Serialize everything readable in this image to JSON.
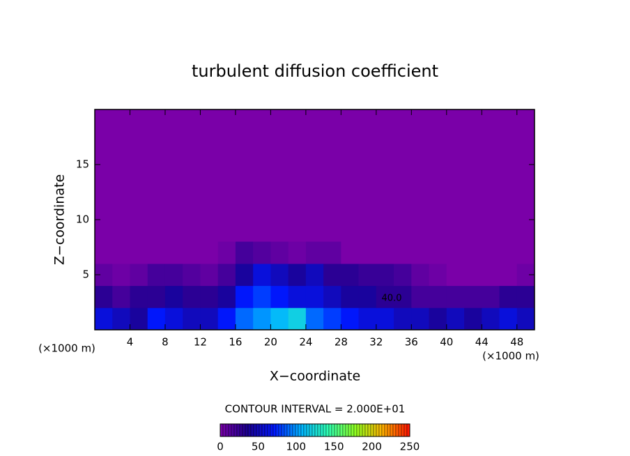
{
  "chart_data": {
    "type": "heatmap",
    "title": "turbulent diffusion coefficient",
    "x_label": "X−coordinate",
    "y_label": "Z−coordinate",
    "x_unit_left": "(×1000 m)",
    "x_unit_right": "(×1000 m)",
    "contour_interval": "CONTOUR INTERVAL = 2.000E+01",
    "annotations": [
      "40.0"
    ],
    "xlim": [
      0,
      50
    ],
    "ylim": [
      0,
      20
    ],
    "xticks": [
      4,
      8,
      12,
      16,
      20,
      24,
      28,
      32,
      36,
      40,
      44,
      48
    ],
    "yticks": [
      5,
      10,
      15
    ],
    "xbins": [
      0,
      2,
      4,
      6,
      8,
      10,
      12,
      14,
      16,
      18,
      20,
      22,
      24,
      26,
      28,
      30,
      32,
      34,
      36,
      38,
      40,
      42,
      44,
      46,
      48,
      50
    ],
    "ybins": [
      0,
      2,
      4,
      6,
      8
    ],
    "values": [
      [
        60,
        50,
        40,
        70,
        60,
        50,
        50,
        70,
        90,
        100,
        110,
        120,
        90,
        80,
        70,
        60,
        60,
        50,
        50,
        40,
        50,
        40,
        50,
        60,
        50
      ],
      [
        30,
        20,
        30,
        30,
        40,
        30,
        30,
        40,
        70,
        80,
        70,
        60,
        60,
        50,
        40,
        40,
        30,
        30,
        20,
        20,
        20,
        20,
        20,
        30,
        30
      ],
      [
        10,
        5,
        10,
        20,
        20,
        15,
        10,
        20,
        40,
        60,
        50,
        40,
        50,
        30,
        30,
        25,
        25,
        20,
        10,
        5,
        0,
        0,
        0,
        0,
        5
      ],
      [
        0,
        0,
        0,
        0,
        0,
        0,
        0,
        5,
        20,
        15,
        10,
        5,
        10,
        10,
        0,
        0,
        0,
        0,
        0,
        0,
        0,
        0,
        0,
        0,
        0
      ]
    ],
    "clim": [
      0,
      250
    ],
    "colorbar_ticks": [
      0,
      50,
      100,
      150,
      200,
      250
    ],
    "colormap": [
      "#7a00a8",
      "#1c0090",
      "#0018ff",
      "#00b4ff",
      "#30ffb0",
      "#90ff20",
      "#ffb000",
      "#ff1000"
    ]
  }
}
